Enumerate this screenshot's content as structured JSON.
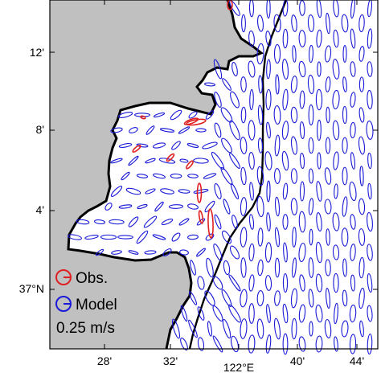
{
  "map": {
    "colors": {
      "land": "#c0c0c0",
      "sea": "#ffffff",
      "coast": "#000000",
      "observed": "#e02020",
      "model": "#1a1ad8",
      "frame": "#000000"
    },
    "x_tick_labels": [
      "28'",
      "32'",
      "122°E",
      "40'",
      "44'"
    ],
    "y_tick_labels": [
      "12'",
      "8'",
      "4'",
      "37°N"
    ],
    "legend": {
      "observed_label": "Obs.",
      "model_label": "Model",
      "scale_label": "0.25 m/s"
    }
  }
}
